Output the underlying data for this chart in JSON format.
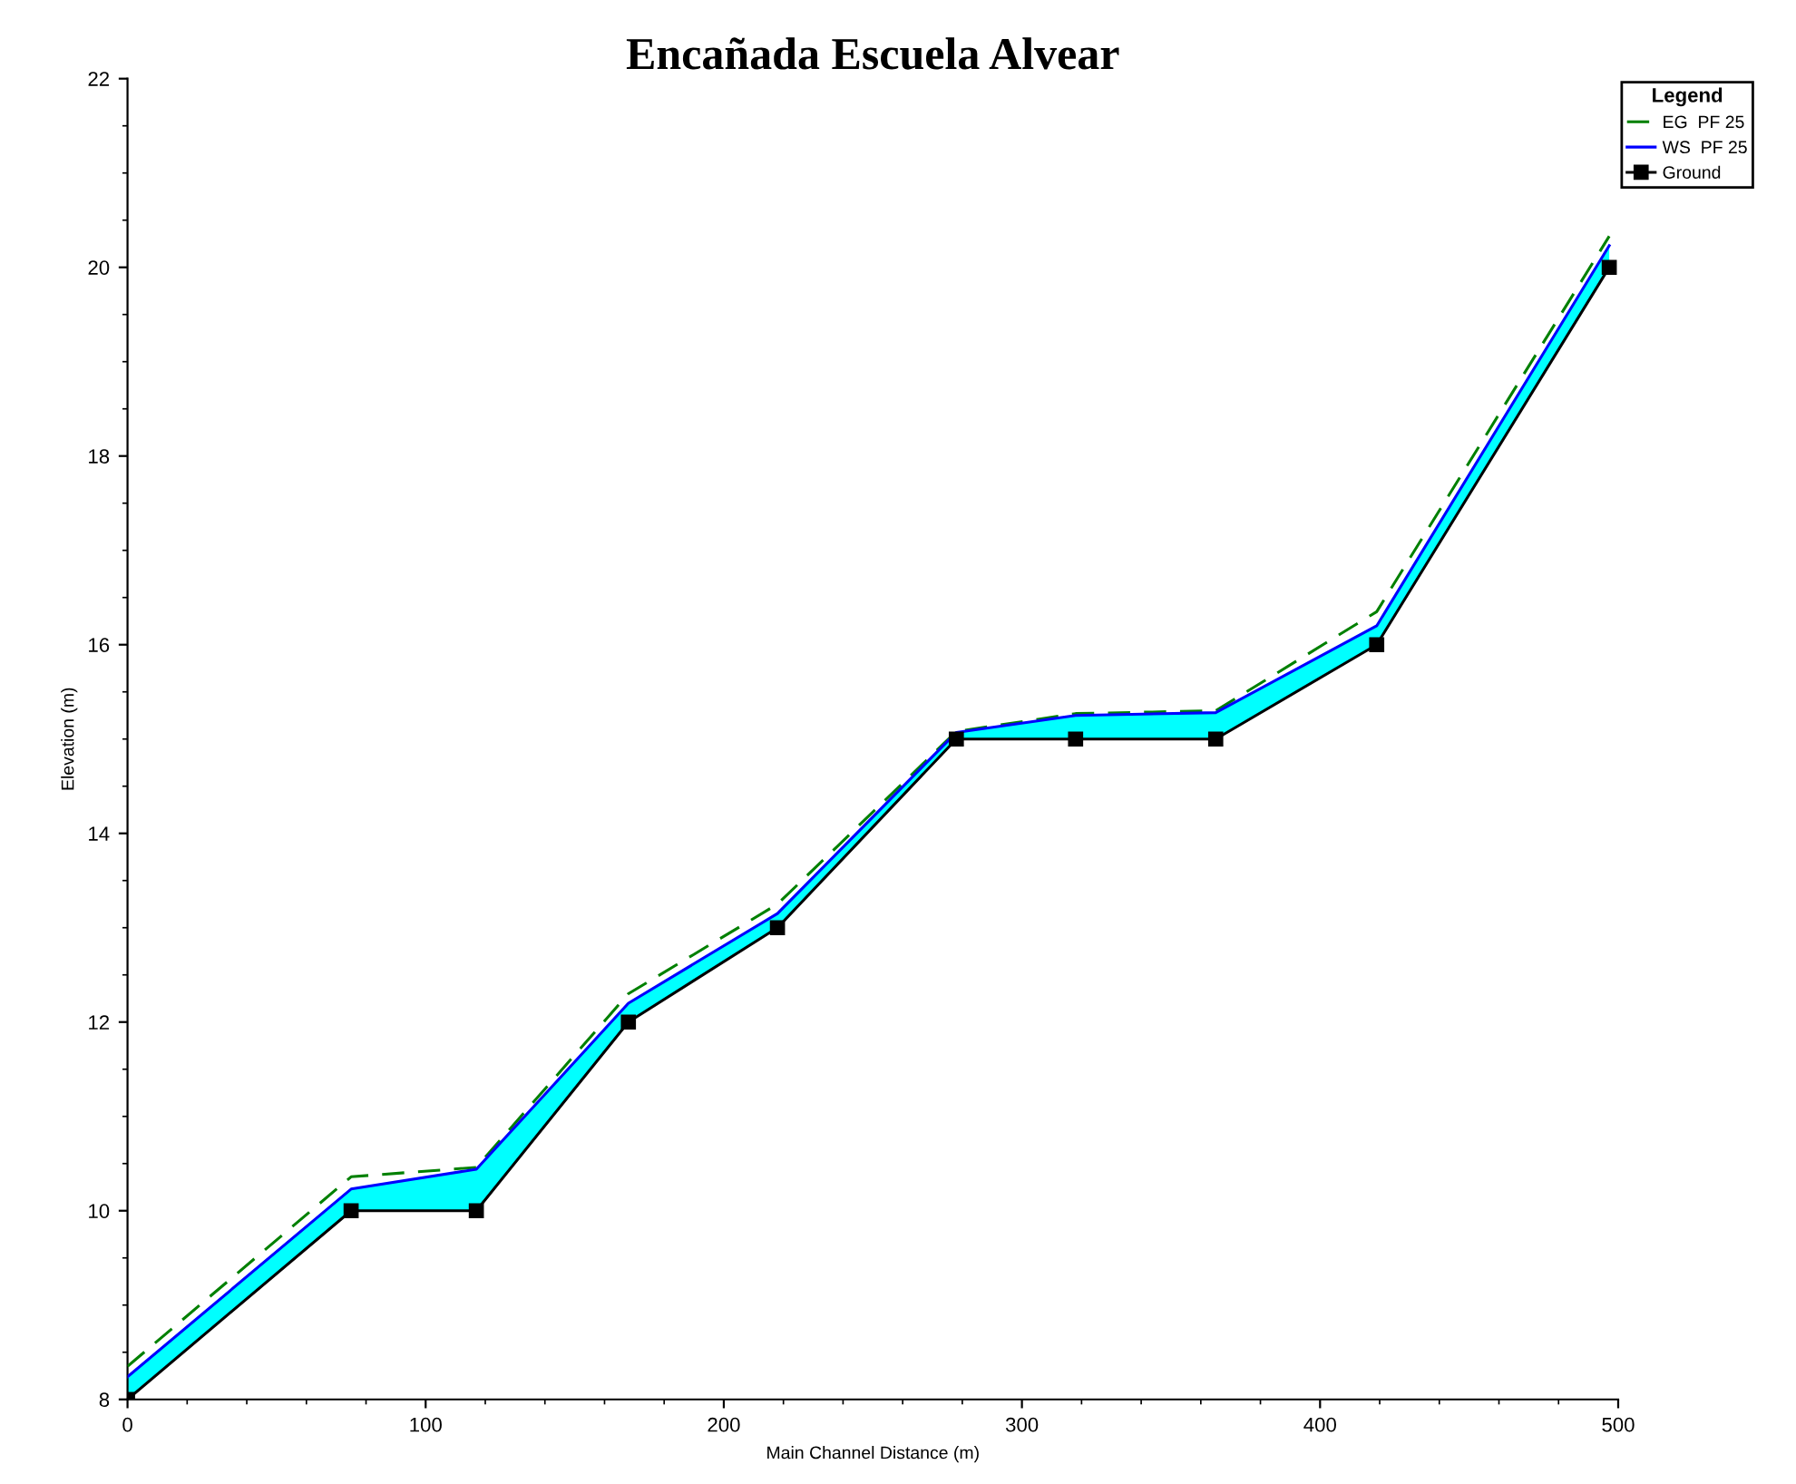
{
  "chart_data": {
    "type": "line",
    "title": "Encañada Escuela Alvear",
    "xlabel": "Main Channel Distance (m)",
    "ylabel": "Elevation (m)",
    "legend_title": "Legend",
    "x": [
      0,
      75,
      117,
      168,
      218,
      278,
      318,
      365,
      419,
      497
    ],
    "series": [
      {
        "name": "EG  PF 25",
        "color": "#008000",
        "line_style": "dashed",
        "values": [
          8.35,
          10.36,
          10.46,
          12.3,
          13.25,
          15.08,
          15.27,
          15.3,
          16.35,
          20.33
        ]
      },
      {
        "name": "WS  PF 25",
        "color": "#0000ff",
        "values": [
          8.24,
          10.23,
          10.44,
          12.2,
          13.15,
          15.07,
          15.25,
          15.28,
          16.2,
          20.23
        ],
        "lower": [
          8,
          10,
          10,
          12,
          13,
          15,
          15,
          15,
          16,
          20
        ],
        "upper": [
          8.24,
          10.23,
          10.44,
          12.2,
          13.15,
          15.07,
          15.25,
          15.28,
          16.2,
          20.23
        ]
      },
      {
        "name": "Ground",
        "color": "#000000",
        "marker": "square",
        "values": [
          8,
          10,
          10,
          12,
          13,
          15,
          15,
          15,
          16,
          20
        ]
      }
    ],
    "xlim": [
      0,
      500
    ],
    "xticks": [
      0,
      100,
      200,
      300,
      400,
      500
    ],
    "ylim": [
      8,
      22
    ],
    "yticks": [
      8,
      10,
      12,
      14,
      16,
      18,
      20,
      22
    ],
    "grid": false,
    "legend": "top right"
  }
}
